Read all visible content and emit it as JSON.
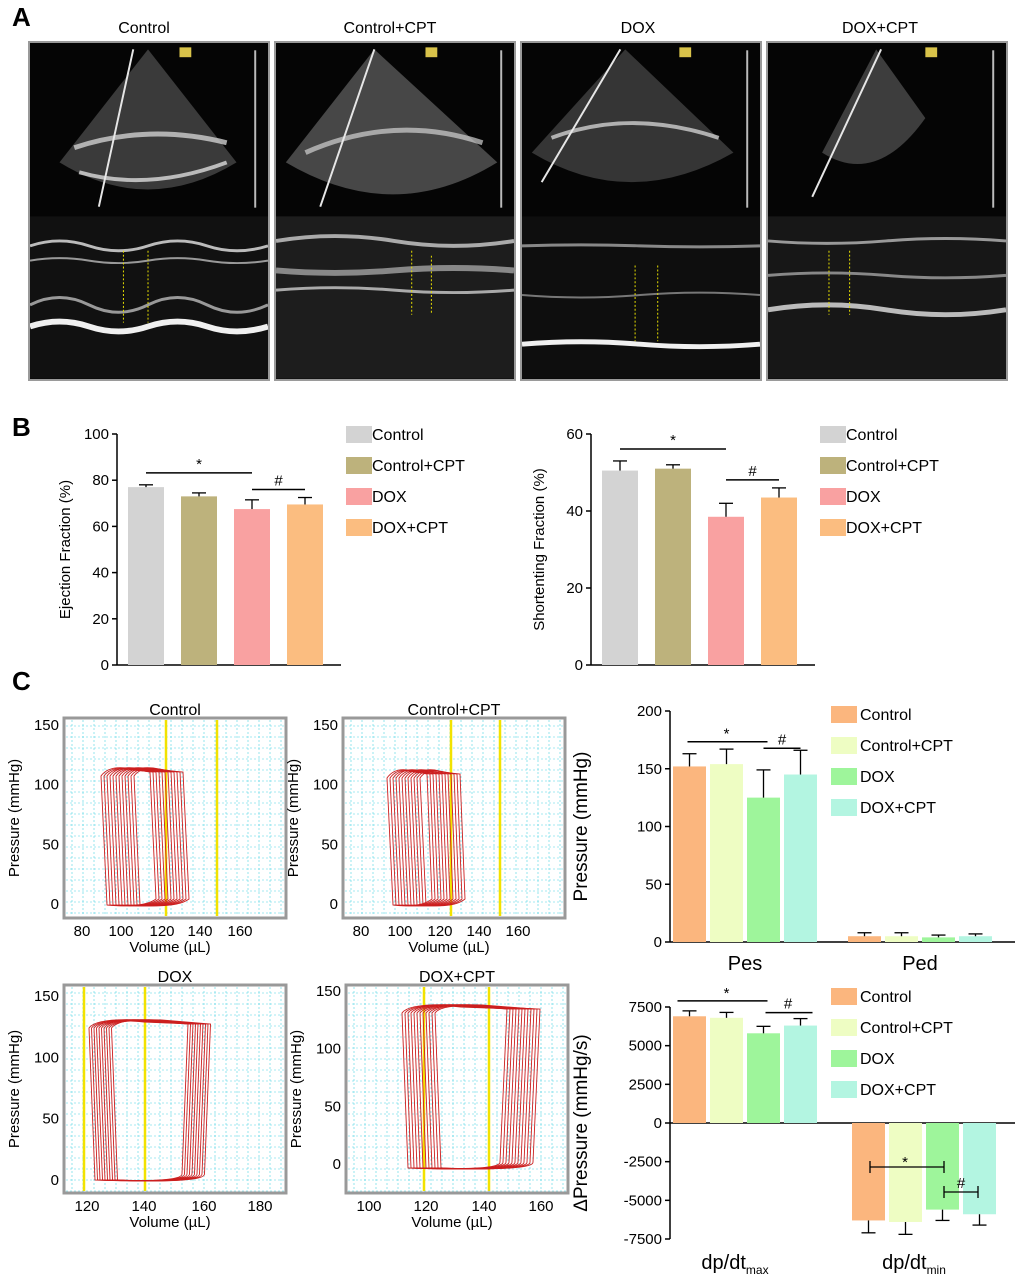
{
  "panels": {
    "a": "A",
    "b": "B",
    "c": "C"
  },
  "echo_titles": [
    "Control",
    "Control+CPT",
    "DOX",
    "DOX+CPT"
  ],
  "colors": {
    "b_control": "#d3d3d3",
    "b_control_cpt": "#bdb27c",
    "b_dox": "#f9a1a1",
    "b_dox_cpt": "#fbbd80",
    "c_control": "#fbb67e",
    "c_control_cpt": "#eefdc3",
    "c_dox": "#9ef59b",
    "c_dox_cpt": "#b3f5e1",
    "pv_loop": "#cc1f1f",
    "pv_marker": "#f2e200",
    "pv_grid": "#4fd3e3"
  },
  "pv_loops": [
    {
      "title": "Control",
      "xlabel": "Volume (µL)",
      "ylabel": "Pressure (mmHg)",
      "xticks": [
        "80",
        "100",
        "120",
        "140",
        "160"
      ],
      "yticks": [
        "0",
        "50",
        "100",
        "150"
      ]
    },
    {
      "title": "Control+CPT",
      "xlabel": "Volume (µL)",
      "ylabel": "Pressure (mmHg)",
      "xticks": [
        "80",
        "100",
        "120",
        "140",
        "160"
      ],
      "yticks": [
        "0",
        "50",
        "100",
        "150"
      ]
    },
    {
      "title": "DOX",
      "xlabel": "Volume (µL)",
      "ylabel": "Pressure (mmHg)",
      "xticks": [
        "120",
        "140",
        "160",
        "180"
      ],
      "yticks": [
        "0",
        "50",
        "100",
        "150"
      ]
    },
    {
      "title": "DOX+CPT",
      "xlabel": "Volume (µL)",
      "ylabel": "Pressure (mmHg)",
      "xticks": [
        "100",
        "120",
        "140",
        "160"
      ],
      "yticks": [
        "0",
        "50",
        "100",
        "150"
      ]
    }
  ],
  "chart_data": [
    {
      "type": "bar",
      "categories": [
        "Control",
        "Control+CPT",
        "DOX",
        "DOX+CPT"
      ],
      "values": [
        77,
        73,
        67.5,
        69.5
      ],
      "errors": [
        1,
        1.5,
        4,
        3
      ],
      "ylabel": "Ejection Fraction (%)",
      "ylim": [
        0,
        100
      ],
      "yticks": [
        "0",
        "20",
        "40",
        "60",
        "80",
        "100"
      ],
      "legend": [
        "Control",
        "Control+CPT",
        "DOX",
        "DOX+CPT"
      ],
      "annotations": [
        "*",
        "#"
      ]
    },
    {
      "type": "bar",
      "categories": [
        "Control",
        "Control+CPT",
        "DOX",
        "DOX+CPT"
      ],
      "values": [
        50.5,
        51,
        38.5,
        43.5
      ],
      "errors": [
        2.5,
        1,
        3.5,
        2.5
      ],
      "ylabel": "Shortenting Fraction (%)",
      "ylim": [
        0,
        60
      ],
      "yticks": [
        "0",
        "20",
        "40",
        "60"
      ],
      "legend": [
        "Control",
        "Control+CPT",
        "DOX",
        "DOX+CPT"
      ],
      "annotations": [
        "*",
        "#"
      ]
    },
    {
      "type": "bar",
      "categories": [
        "Pes",
        "Ped"
      ],
      "series": [
        {
          "name": "Control",
          "values": [
            152,
            5
          ],
          "errors": [
            11,
            3
          ]
        },
        {
          "name": "Control+CPT",
          "values": [
            154,
            5
          ],
          "errors": [
            13,
            3
          ]
        },
        {
          "name": "DOX",
          "values": [
            125,
            4
          ],
          "errors": [
            24,
            2
          ]
        },
        {
          "name": "DOX+CPT",
          "values": [
            145,
            5
          ],
          "errors": [
            21,
            2
          ]
        }
      ],
      "ylabel": "Pressure (mmHg)",
      "ylim": [
        0,
        200
      ],
      "yticks": [
        "0",
        "50",
        "100",
        "150",
        "200"
      ],
      "annotations": [
        "*",
        "#"
      ]
    },
    {
      "type": "bar",
      "categories": [
        "dp/dtmax",
        "dp/dtmin"
      ],
      "series": [
        {
          "name": "Control",
          "values": [
            6900,
            -6300
          ],
          "errors": [
            350,
            800
          ]
        },
        {
          "name": "Control+CPT",
          "values": [
            6800,
            -6400
          ],
          "errors": [
            350,
            800
          ]
        },
        {
          "name": "DOX",
          "values": [
            5800,
            -5600
          ],
          "errors": [
            450,
            700
          ]
        },
        {
          "name": "DOX+CPT",
          "values": [
            6300,
            -5900
          ],
          "errors": [
            450,
            700
          ]
        }
      ],
      "ylabel": "ΔPressure (mmHg/s)",
      "ylim": [
        -7500,
        7500
      ],
      "yticks": [
        "-7500",
        "-5000",
        "-2500",
        "0",
        "2500",
        "5000",
        "7500"
      ],
      "annotations": [
        "*",
        "#",
        "*",
        "#"
      ]
    }
  ]
}
